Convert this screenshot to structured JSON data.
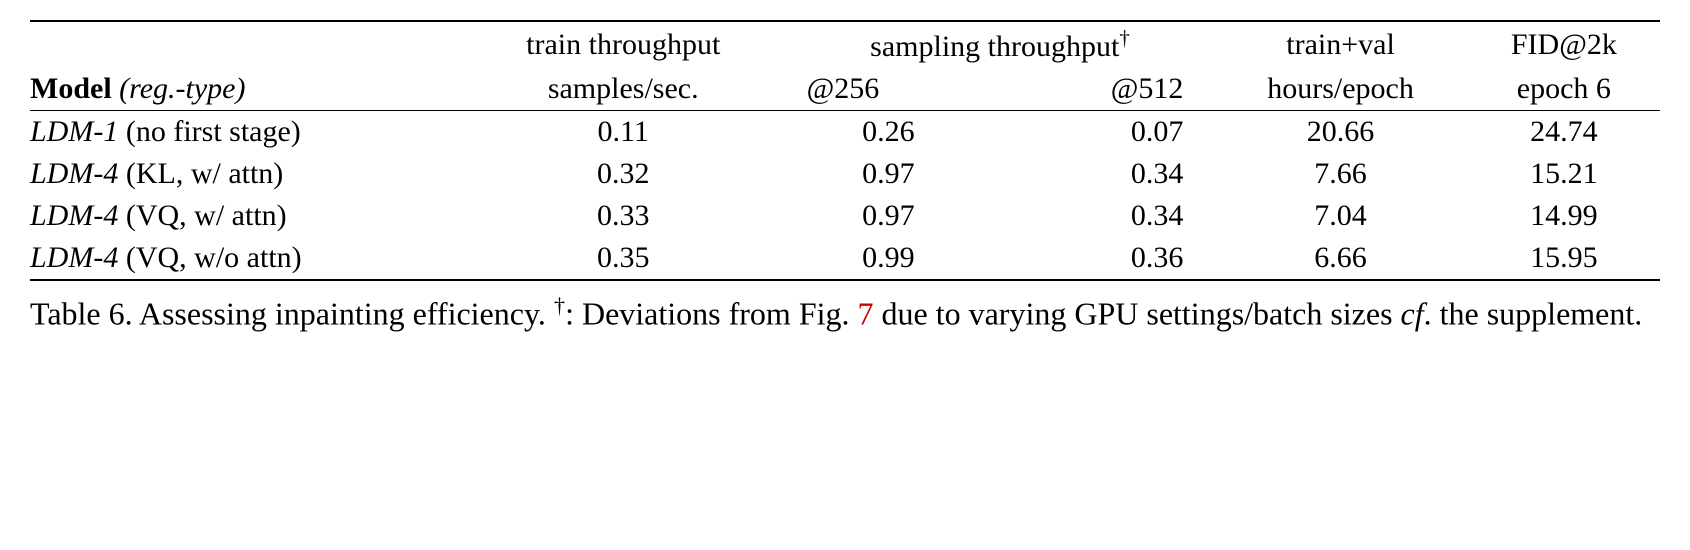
{
  "table": {
    "header": {
      "model_label_bold": "Model",
      "model_label_italic": " (reg.-type)",
      "train_throughput_line1": "train throughput",
      "train_throughput_line2": "samples/sec.",
      "sampling_line1": "sampling throughput",
      "dagger": "†",
      "sampling_at256": "@256",
      "sampling_at512": "@512",
      "trainval_line1": "train+val",
      "trainval_line2": "hours/epoch",
      "fid_line1": "FID@2k",
      "fid_line2": "epoch 6"
    },
    "rows": [
      {
        "model_name": "LDM-1",
        "model_suffix": " (no first stage)",
        "train_tp": "0.11",
        "samp256": "0.26",
        "samp512": "0.07",
        "trainval": "20.66",
        "fid": "24.74"
      },
      {
        "model_name": "LDM-4",
        "model_suffix": " (KL, w/ attn)",
        "train_tp": "0.32",
        "samp256": "0.97",
        "samp512": "0.34",
        "trainval": "7.66",
        "fid": "15.21"
      },
      {
        "model_name": "LDM-4",
        "model_suffix": " (VQ, w/ attn)",
        "train_tp": "0.33",
        "samp256": "0.97",
        "samp512": "0.34",
        "trainval": "7.04",
        "fid": "14.99"
      },
      {
        "model_name": "LDM-4",
        "model_suffix": " (VQ, w/o attn)",
        "train_tp": "0.35",
        "samp256": "0.99",
        "samp512": "0.36",
        "trainval": "6.66",
        "fid": "15.95"
      }
    ]
  },
  "caption": {
    "prefix": "Table 6.  Assessing inpainting efficiency. ",
    "dagger": "†",
    "mid1": ": Deviations from Fig. ",
    "ref": "7",
    "mid2": " due to varying GPU settings/batch sizes ",
    "cf": "cf",
    "suffix": ". the supplement."
  }
}
